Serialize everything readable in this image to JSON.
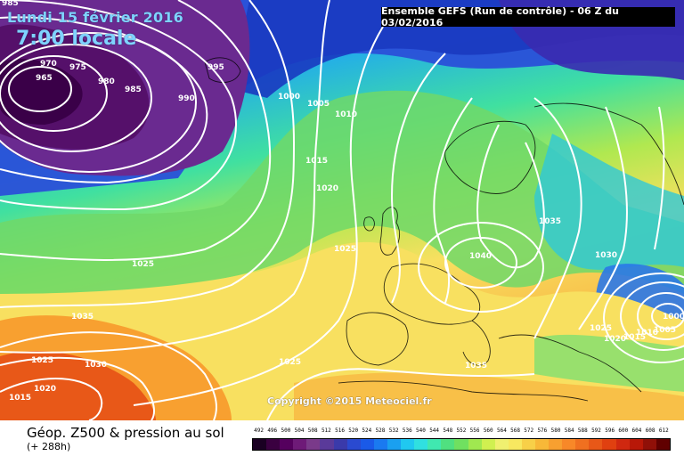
{
  "header": {
    "date": "Lundi 15 février 2016",
    "time": "7:00 locale",
    "run": "Ensemble GEFS  (Run de contrôle)  - 06 Z du 03/02/2016"
  },
  "copyright": "Copyright ©2015 Meteociel.fr",
  "footer": {
    "title": "Géop. Z500 & pression au sol",
    "subtitle": "(+ 288h)"
  },
  "scale": {
    "labels": [
      "492",
      "496",
      "500",
      "504",
      "508",
      "512",
      "516",
      "520",
      "524",
      "528",
      "532",
      "536",
      "540",
      "544",
      "548",
      "552",
      "556",
      "560",
      "564",
      "568",
      "572",
      "576",
      "580",
      "584",
      "588",
      "592",
      "596",
      "600",
      "604",
      "608",
      "612"
    ],
    "colors": [
      "#1a0022",
      "#3a0040",
      "#55005e",
      "#6e1a78",
      "#7a3a8a",
      "#5a3a9a",
      "#3a3aaa",
      "#2a4ad0",
      "#1a5ae8",
      "#1a7af0",
      "#1aa0f0",
      "#20c8f0",
      "#30e0e0",
      "#40e8b0",
      "#50e080",
      "#70e060",
      "#a0e850",
      "#d0f050",
      "#f0f070",
      "#f8e860",
      "#f8d048",
      "#f8b838",
      "#f8a030",
      "#f88828",
      "#f07020",
      "#e85818",
      "#e04010",
      "#d02810",
      "#b81808",
      "#901008",
      "#600000"
    ]
  },
  "isobars": [
    {
      "id": "isobar-965",
      "text": "965"
    },
    {
      "id": "isobar-970",
      "text": "970"
    },
    {
      "id": "isobar-975",
      "text": "975"
    },
    {
      "id": "isobar-980",
      "text": "980"
    },
    {
      "id": "isobar-985",
      "text": "985"
    },
    {
      "id": "isobar-990",
      "text": "990"
    },
    {
      "id": "isobar-995",
      "text": "995"
    },
    {
      "id": "isobar-1000",
      "text": "1000"
    },
    {
      "id": "isobar-1005",
      "text": "1005"
    },
    {
      "id": "isobar-1010",
      "text": "1010"
    },
    {
      "id": "isobar-1015",
      "text": "1015"
    },
    {
      "id": "isobar-1020",
      "text": "1020"
    },
    {
      "id": "isobar-1025-atl",
      "text": "1025"
    },
    {
      "id": "isobar-1025-fr",
      "text": "1025"
    },
    {
      "id": "isobar-1035-atl",
      "text": "1035"
    },
    {
      "id": "isobar-1025-sw",
      "text": "1025"
    },
    {
      "id": "isobar-1030-sw",
      "text": "1030"
    },
    {
      "id": "isobar-1020-sw",
      "text": "1020"
    },
    {
      "id": "isobar-1015-sw",
      "text": "1015"
    },
    {
      "id": "isobar-1025-s",
      "text": "1025"
    },
    {
      "id": "isobar-1040",
      "text": "1040"
    },
    {
      "id": "isobar-1035-e",
      "text": "1035"
    },
    {
      "id": "isobar-1030-e",
      "text": "1030"
    },
    {
      "id": "isobar-1035-med",
      "text": "1035"
    },
    {
      "id": "isobar-1025-se",
      "text": "1025"
    },
    {
      "id": "isobar-1020-se",
      "text": "1020"
    },
    {
      "id": "isobar-1015-se",
      "text": "1015"
    },
    {
      "id": "isobar-1010-se",
      "text": "1010"
    },
    {
      "id": "isobar-1005-se",
      "text": "1005"
    },
    {
      "id": "isobar-1000-se",
      "text": "1000"
    },
    {
      "id": "isobar-985-corner",
      "text": "985"
    }
  ]
}
